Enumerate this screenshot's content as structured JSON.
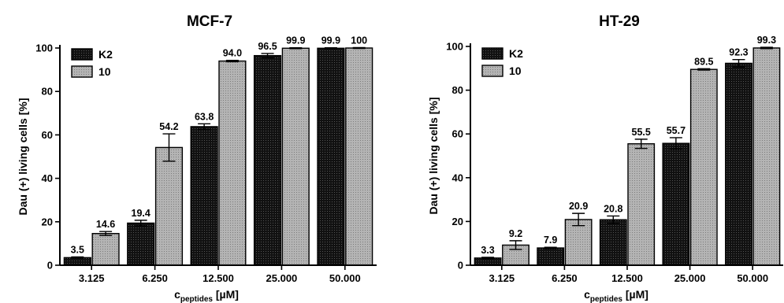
{
  "colors": {
    "K2": "#111111",
    "10": "#a9a9a9",
    "axis": "#000000"
  },
  "chart_data": [
    {
      "type": "bar",
      "title": "MCF-7",
      "ylabel": "Dau (+) living cells [%]",
      "xlabel_main": "c",
      "xlabel_sub": "peptides",
      "xlabel_unit": " [µM]",
      "categories": [
        "3.125",
        "6.250",
        "12.500",
        "25.000",
        "50.000"
      ],
      "ylim": [
        0,
        100
      ],
      "yticks": [
        "0",
        "20",
        "40",
        "60",
        "80",
        "100"
      ],
      "legend_position": "top-left",
      "grid": false,
      "series": [
        {
          "name": "K2",
          "values": [
            3.5,
            19.4,
            63.8,
            96.5,
            99.9
          ],
          "labels": [
            "3.5",
            "19.4",
            "63.8",
            "96.5",
            "99.9"
          ],
          "errors": [
            0.3,
            1.3,
            1.3,
            1.0,
            0.2
          ]
        },
        {
          "name": "10",
          "values": [
            14.6,
            54.2,
            94.0,
            99.9,
            100
          ],
          "labels": [
            "14.6",
            "54.2",
            "94.0",
            "99.9",
            "100"
          ],
          "errors": [
            0.9,
            6.3,
            0.3,
            0.2,
            0.2
          ]
        }
      ]
    },
    {
      "type": "bar",
      "title": "HT-29",
      "ylabel": "Dau (+) living cells [%]",
      "xlabel_main": "c",
      "xlabel_sub": "peptides",
      "xlabel_unit": " [µM]",
      "categories": [
        "3.125",
        "6.250",
        "12.500",
        "25.000",
        "50.000"
      ],
      "ylim": [
        0,
        100
      ],
      "yticks": [
        "0",
        "20",
        "40",
        "60",
        "80",
        "100"
      ],
      "legend_position": "top-left",
      "grid": false,
      "series": [
        {
          "name": "K2",
          "values": [
            3.3,
            7.9,
            20.8,
            55.7,
            92.3
          ],
          "labels": [
            "3.3",
            "7.9",
            "20.8",
            "55.7",
            "92.3"
          ],
          "errors": [
            0.3,
            0.3,
            1.7,
            2.6,
            1.7
          ]
        },
        {
          "name": "10",
          "values": [
            9.2,
            20.9,
            55.5,
            89.5,
            99.3
          ],
          "labels": [
            "9.2",
            "20.9",
            "55.5",
            "89.5",
            "99.3"
          ],
          "errors": [
            2.0,
            2.8,
            2.1,
            0.3,
            0.3
          ]
        }
      ]
    }
  ]
}
